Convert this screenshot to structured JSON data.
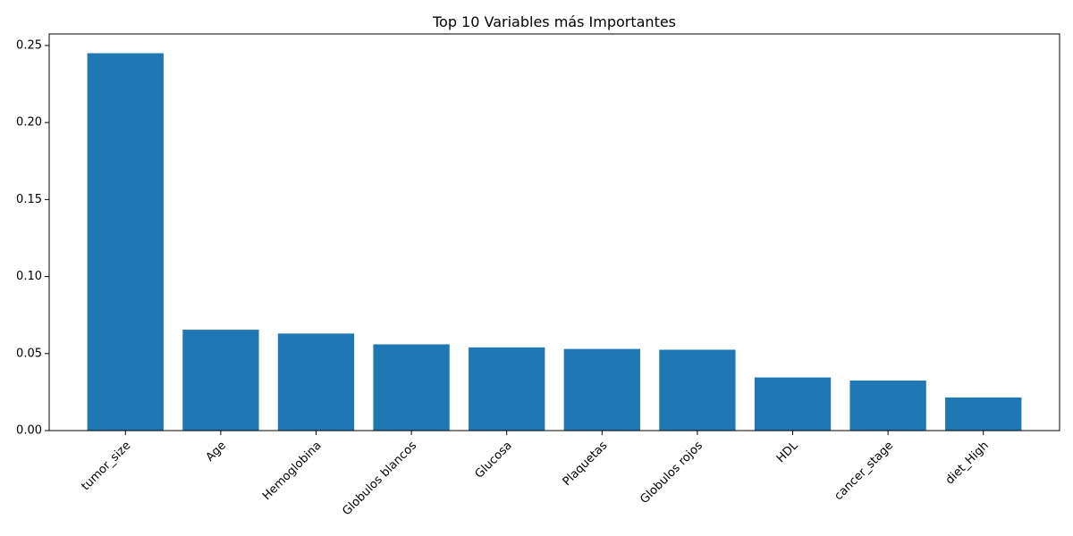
{
  "chart_data": {
    "type": "bar",
    "title": "Top 10 Variables más Importantes",
    "xlabel": "",
    "ylabel": "",
    "categories": [
      "tumor_size",
      "Age",
      "Hemoglobina",
      "Globulos blancos",
      "Glucosa",
      "Plaquetas",
      "Globulos rojos",
      "HDL",
      "cancer_stage",
      "diet_High"
    ],
    "values": [
      0.245,
      0.0655,
      0.063,
      0.056,
      0.054,
      0.053,
      0.0525,
      0.0345,
      0.0325,
      0.0215
    ],
    "ylim": [
      0,
      0.2575
    ],
    "yticks": [
      "0.00",
      "0.05",
      "0.10",
      "0.15",
      "0.20",
      "0.25"
    ],
    "grid": false,
    "legend": "none",
    "bar_color": "#1f77b4"
  }
}
